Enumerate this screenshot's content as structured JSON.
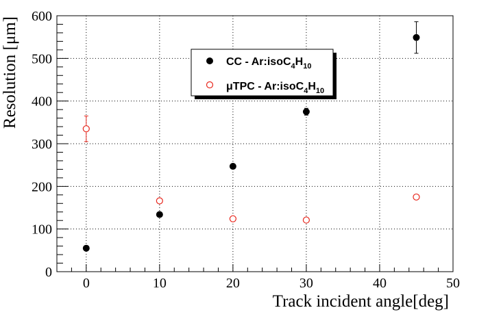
{
  "chart_data": {
    "type": "scatter",
    "title": "",
    "xlabel": "Track incident angle[deg]",
    "ylabel": "Resolution [μm]",
    "xlim": [
      -4,
      50
    ],
    "ylim": [
      0,
      600
    ],
    "x_ticks": [
      0,
      10,
      20,
      30,
      40,
      50
    ],
    "y_ticks": [
      0,
      100,
      200,
      300,
      400,
      500,
      600
    ],
    "grid": true,
    "legend_position": "top-center",
    "series": [
      {
        "name": "CC - Ar:isoC4H10",
        "legend_parts": {
          "main": "CC - Ar:isoC",
          "sub1": "4",
          "mid": "H",
          "sub2": "10"
        },
        "marker": "filled-circle",
        "color": "#000000",
        "points": [
          {
            "x": 0,
            "y": 55,
            "err": 0
          },
          {
            "x": 10,
            "y": 134,
            "err": 0
          },
          {
            "x": 20,
            "y": 247,
            "err": 0
          },
          {
            "x": 30,
            "y": 375,
            "err": 8
          },
          {
            "x": 45,
            "y": 549,
            "err": 37
          }
        ]
      },
      {
        "name": "μTPC - Ar:isoC4H10",
        "legend_parts": {
          "main": "μTPC - Ar:isoC",
          "sub1": "4",
          "mid": "H",
          "sub2": "10"
        },
        "marker": "open-circle",
        "color": "#e8261c",
        "points": [
          {
            "x": 0,
            "y": 335,
            "err": 30
          },
          {
            "x": 10,
            "y": 166,
            "err": 0
          },
          {
            "x": 20,
            "y": 124,
            "err": 0
          },
          {
            "x": 30,
            "y": 121,
            "err": 0
          },
          {
            "x": 45,
            "y": 175,
            "err": 0
          }
        ]
      }
    ]
  }
}
